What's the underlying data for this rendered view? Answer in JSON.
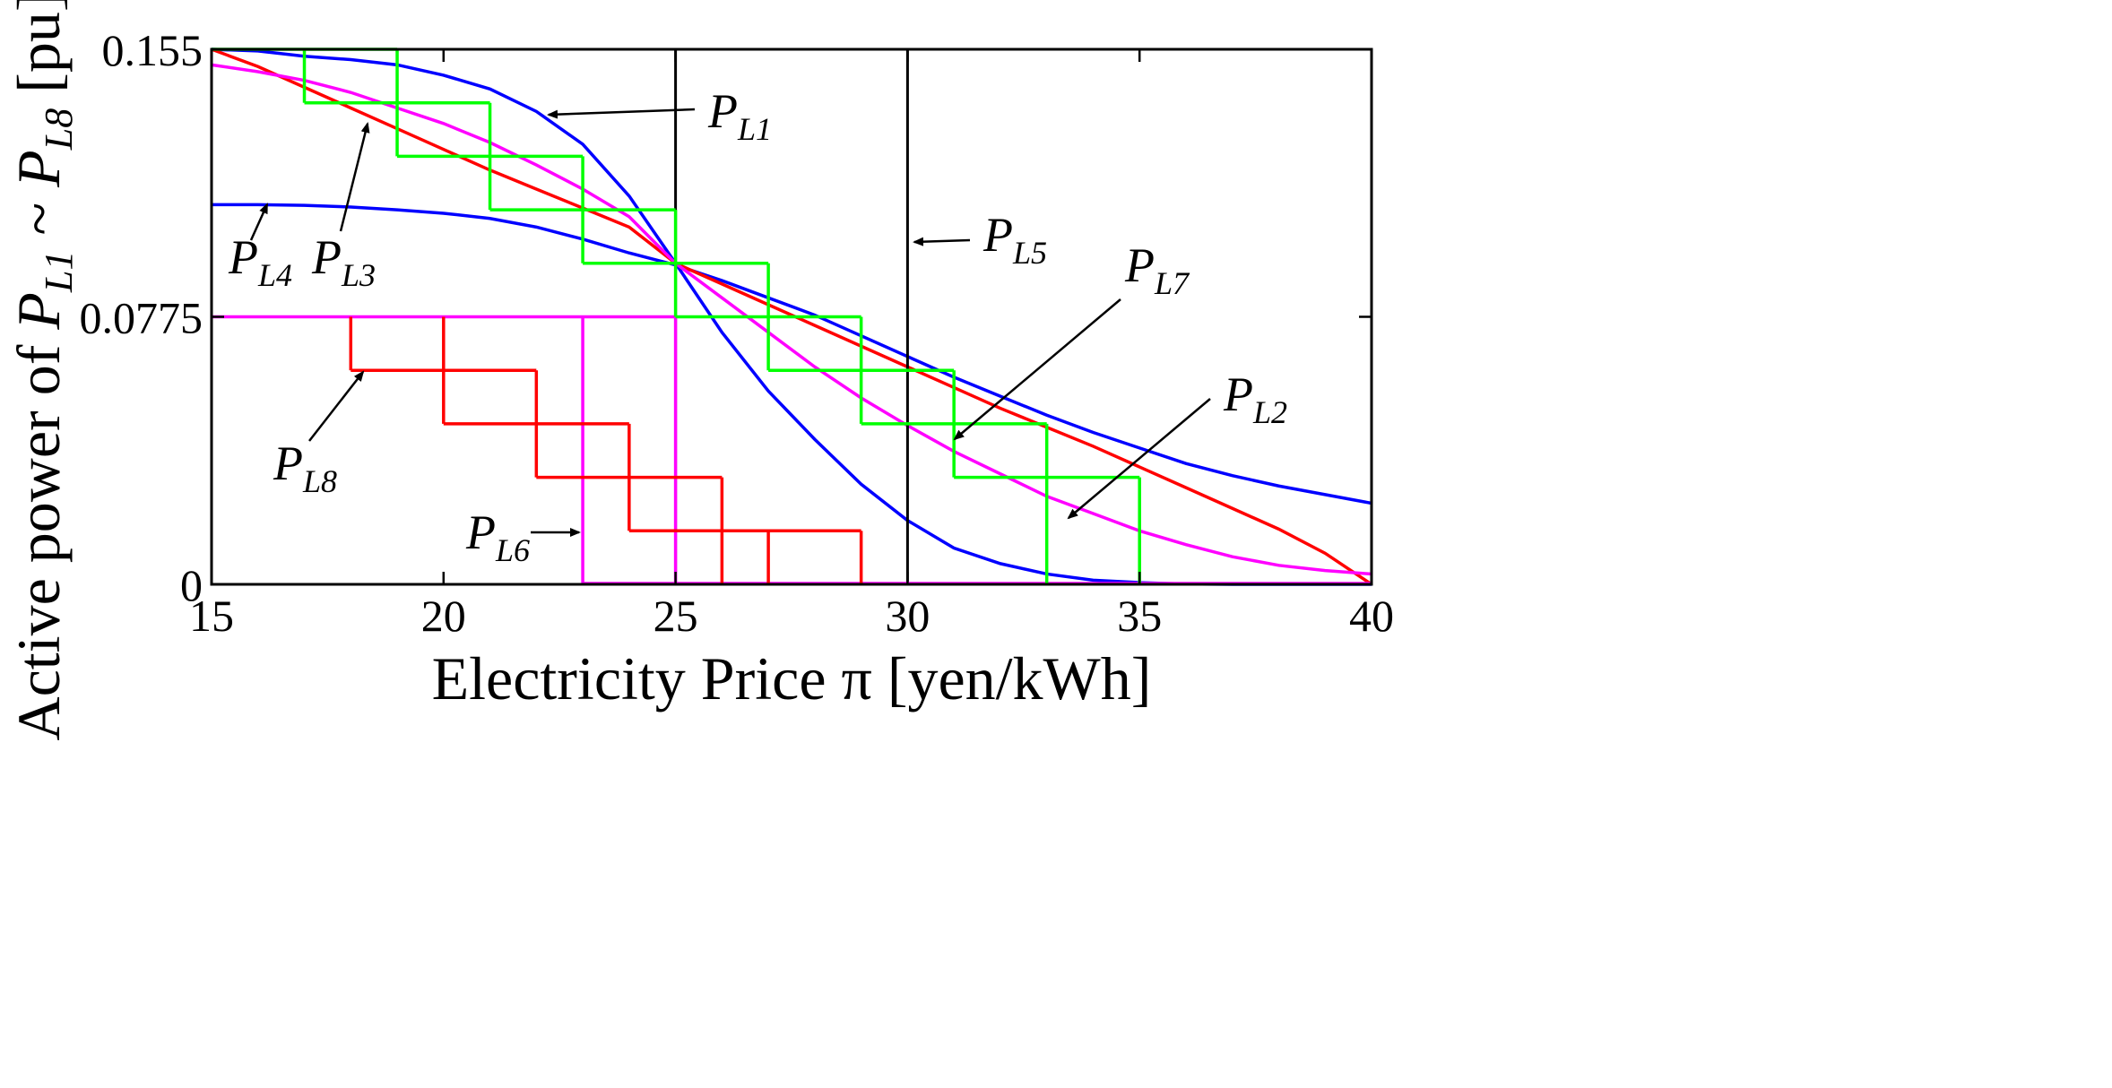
{
  "chart_data": {
    "type": "line",
    "title": "",
    "xlabel": "Electricity Price π [yen/kWh]",
    "ylabel_parts": [
      "Active power of ",
      "P",
      "L1",
      " ~ ",
      "P",
      "L8",
      " [pu]"
    ],
    "xlim": [
      15,
      40
    ],
    "ylim": [
      0,
      0.155
    ],
    "xticks": [
      15,
      20,
      25,
      30,
      35,
      40
    ],
    "yticks": [
      0,
      0.0775,
      0.155
    ],
    "ytick_labels": [
      "0",
      "0.0775",
      "0.155"
    ],
    "grid": false,
    "colors": {
      "blue": "#0000ff",
      "red": "#ff0000",
      "magenta": "#ff00ff",
      "green": "#00ff00",
      "black": "#000000"
    },
    "series": [
      {
        "name": "PL1",
        "kind": "line",
        "color": "#0000ff",
        "x": [
          15,
          16,
          17,
          18,
          19,
          20,
          21,
          22,
          23,
          24,
          25,
          26,
          27,
          28,
          29,
          30,
          31,
          32,
          33,
          34,
          35,
          36,
          37,
          38,
          39,
          40
        ],
        "y": [
          0.155,
          0.1545,
          0.153,
          0.152,
          0.1505,
          0.1475,
          0.1435,
          0.137,
          0.1275,
          0.1125,
          0.093,
          0.073,
          0.056,
          0.042,
          0.029,
          0.0185,
          0.0105,
          0.006,
          0.003,
          0.0012,
          0.0005,
          0.0001,
          0,
          0,
          0,
          0
        ]
      },
      {
        "name": "PL2",
        "kind": "line",
        "color": "#0000ff",
        "x": [
          15,
          16,
          17,
          18,
          19,
          20,
          21,
          22,
          23,
          24,
          25,
          26,
          27,
          28,
          29,
          30,
          31,
          32,
          33,
          34,
          35,
          36,
          37,
          38,
          39,
          40
        ],
        "y": [
          0.11,
          0.11,
          0.1098,
          0.1093,
          0.1085,
          0.1075,
          0.106,
          0.1035,
          0.1,
          0.096,
          0.0925,
          0.088,
          0.083,
          0.078,
          0.072,
          0.066,
          0.06,
          0.0545,
          0.049,
          0.044,
          0.0395,
          0.035,
          0.0315,
          0.0285,
          0.026,
          0.0235
        ]
      },
      {
        "name": "PL3",
        "kind": "line",
        "color": "#ff0000",
        "x": [
          15,
          16,
          17,
          18,
          19,
          20,
          21,
          22,
          23,
          24,
          25,
          26,
          27,
          28,
          29,
          30,
          31,
          32,
          33,
          34,
          35,
          36,
          37,
          38,
          39,
          40
        ],
        "y": [
          0.155,
          0.15,
          0.144,
          0.138,
          0.132,
          0.126,
          0.12,
          0.1145,
          0.109,
          0.1035,
          0.093,
          0.087,
          0.081,
          0.075,
          0.069,
          0.063,
          0.057,
          0.051,
          0.0455,
          0.04,
          0.034,
          0.028,
          0.022,
          0.016,
          0.009,
          0
        ]
      },
      {
        "name": "PL4",
        "kind": "line",
        "color": "#ff00ff",
        "x": [
          15,
          16,
          17,
          18,
          19,
          20,
          21,
          22,
          23,
          24,
          25,
          26,
          27,
          28,
          29,
          30,
          31,
          32,
          33,
          34,
          35,
          36,
          37,
          38,
          39,
          40
        ],
        "y": [
          0.1505,
          0.1485,
          0.146,
          0.1425,
          0.138,
          0.1335,
          0.128,
          0.1215,
          0.1145,
          0.1065,
          0.093,
          0.083,
          0.073,
          0.063,
          0.054,
          0.046,
          0.0385,
          0.032,
          0.0255,
          0.0205,
          0.0155,
          0.0115,
          0.008,
          0.0055,
          0.004,
          0.003
        ]
      },
      {
        "name": "PL5",
        "kind": "vline",
        "color": "#000000",
        "x": [
          30
        ],
        "y": [
          0.155
        ]
      },
      {
        "name": "PL6",
        "kind": "step",
        "color": "#ff00ff",
        "x": [
          15,
          23,
          23,
          25,
          25,
          40
        ],
        "y": [
          0.0775,
          0.0775,
          0,
          0.0775,
          0,
          0
        ]
      },
      {
        "name": "PL7",
        "kind": "step",
        "color": "#00ff00",
        "x": [
          15,
          17,
          19,
          21,
          23,
          25,
          27,
          29,
          31,
          33,
          35
        ],
        "y": [
          0.155,
          0.1395,
          0.124,
          0.1085,
          0.093,
          0.0775,
          0.062,
          0.0465,
          0.031,
          0.0,
          0.0
        ]
      },
      {
        "name": "PL8",
        "kind": "step",
        "color": "#ff0000",
        "x": [
          18,
          20,
          22,
          24,
          26,
          28
        ],
        "y": [
          0.062,
          0.0465,
          0.031,
          0.0155,
          0.0155,
          0.0
        ]
      },
      {
        "name": "vline-25",
        "kind": "vline",
        "color": "#000000",
        "x": [
          25
        ],
        "y": [
          0.155
        ]
      }
    ],
    "annotations": [
      {
        "label": "P",
        "sub": "L1"
      },
      {
        "label": "P",
        "sub": "L2"
      },
      {
        "label": "P",
        "sub": "L3"
      },
      {
        "label": "P",
        "sub": "L4"
      },
      {
        "label": "P",
        "sub": "L5"
      },
      {
        "label": "P",
        "sub": "L6"
      },
      {
        "label": "P",
        "sub": "L7"
      },
      {
        "label": "P",
        "sub": "L8"
      }
    ]
  }
}
